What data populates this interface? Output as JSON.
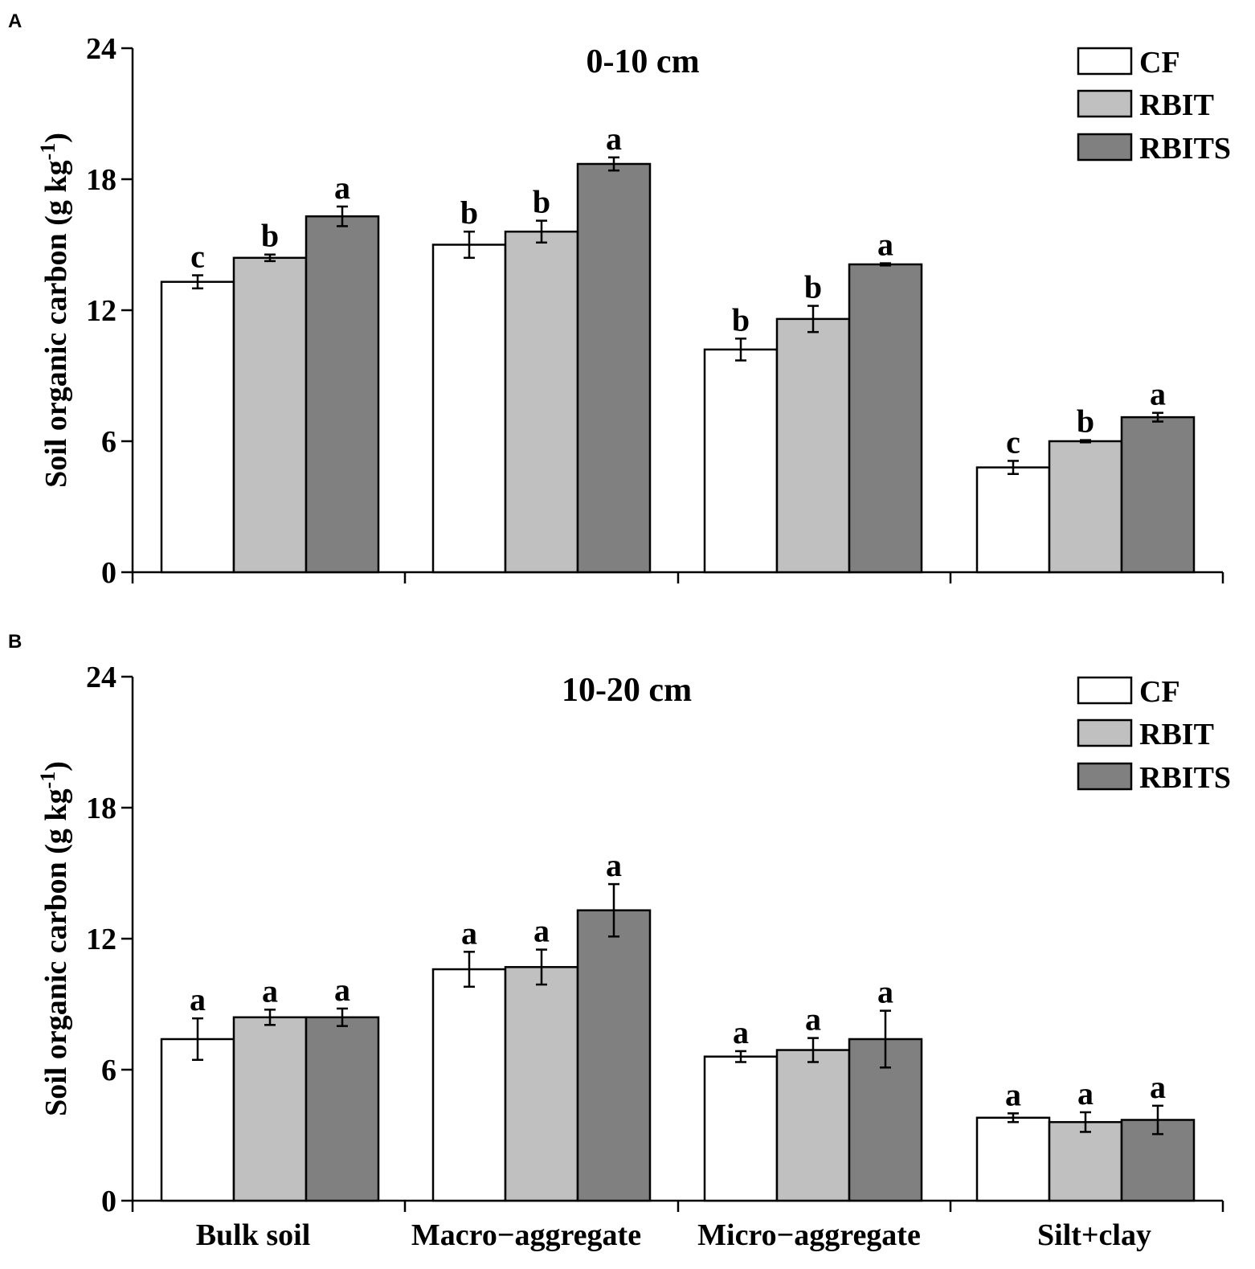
{
  "categories": [
    "Bulk soil",
    "Macro−aggregate",
    "Micro−aggregate",
    "Silt+clay"
  ],
  "legend": [
    {
      "label": "CF",
      "color": "#ffffff"
    },
    {
      "label": "RBIT",
      "color": "#c0c0c0"
    },
    {
      "label": "RBITS",
      "color": "#808080"
    }
  ],
  "ylabel_main": "Soil organic carbon (g kg",
  "ylabel_sup": "-1",
  "ylabel_close": ")",
  "chart_data": [
    {
      "type": "bar",
      "panel": "A",
      "title": "0-10 cm",
      "categories": [
        "Bulk soil",
        "Macro−aggregate",
        "Micro−aggregate",
        "Silt+clay"
      ],
      "ylabel": "Soil organic carbon (g kg-1)",
      "ylim": [
        0,
        24
      ],
      "yticks": [
        0,
        6,
        12,
        18,
        24
      ],
      "series": [
        {
          "name": "CF",
          "values": [
            13.3,
            15.0,
            10.2,
            4.8
          ],
          "errors": [
            0.3,
            0.6,
            0.5,
            0.3
          ],
          "letters": [
            "c",
            "b",
            "b",
            "c"
          ]
        },
        {
          "name": "RBIT",
          "values": [
            14.4,
            15.6,
            11.6,
            6.0
          ],
          "errors": [
            0.15,
            0.5,
            0.6,
            0.05
          ],
          "letters": [
            "b",
            "b",
            "b",
            "b"
          ]
        },
        {
          "name": "RBITS",
          "values": [
            16.3,
            18.7,
            14.1,
            7.1
          ],
          "errors": [
            0.45,
            0.3,
            0.05,
            0.2
          ],
          "letters": [
            "a",
            "a",
            "a",
            "a"
          ]
        }
      ]
    },
    {
      "type": "bar",
      "panel": "B",
      "title": "10-20 cm",
      "categories": [
        "Bulk soil",
        "Macro−aggregate",
        "Micro−aggregate",
        "Silt+clay"
      ],
      "ylabel": "Soil organic carbon (g kg-1)",
      "ylim": [
        0,
        24
      ],
      "yticks": [
        0,
        6,
        12,
        18,
        24
      ],
      "series": [
        {
          "name": "CF",
          "values": [
            7.4,
            10.6,
            6.6,
            3.8
          ],
          "errors": [
            0.95,
            0.8,
            0.25,
            0.2
          ],
          "letters": [
            "a",
            "a",
            "a",
            "a"
          ]
        },
        {
          "name": "RBIT",
          "values": [
            8.4,
            10.7,
            6.9,
            3.6
          ],
          "errors": [
            0.35,
            0.8,
            0.55,
            0.45
          ],
          "letters": [
            "a",
            "a",
            "a",
            "a"
          ]
        },
        {
          "name": "RBITS",
          "values": [
            8.4,
            13.3,
            7.4,
            3.7
          ],
          "errors": [
            0.4,
            1.2,
            1.3,
            0.65
          ],
          "letters": [
            "a",
            "a",
            "a",
            "a"
          ]
        }
      ]
    }
  ]
}
